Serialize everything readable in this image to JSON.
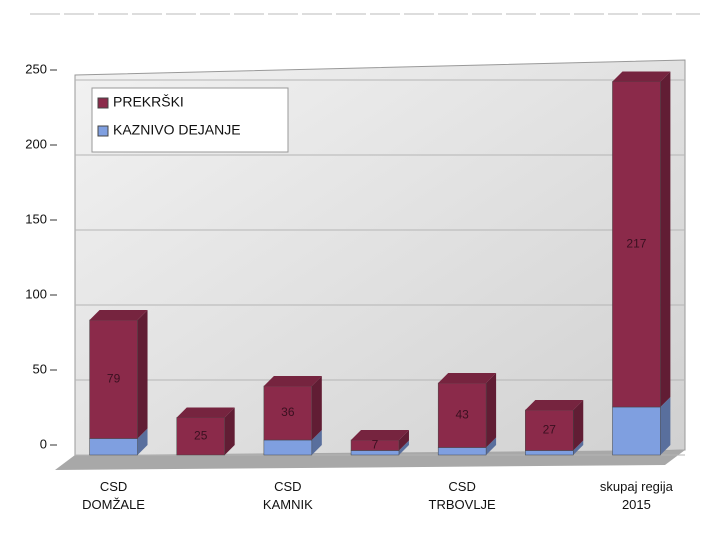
{
  "chart_data": {
    "type": "stacked_bar",
    "categories": [
      "CSD DOMŽALE",
      null,
      "CSD KAMNIK",
      null,
      "CSD TRBOVLJE",
      null,
      "skupaj regija 2015"
    ],
    "series": [
      {
        "name": "KAZNIVO DEJANJE",
        "color": "#7f9fe0",
        "values": [
          11,
          0,
          10,
          3,
          5,
          3,
          32
        ]
      },
      {
        "name": "PREKRŠKI",
        "color": "#8b2a4a",
        "values": [
          79,
          25,
          36,
          7,
          43,
          27,
          217
        ]
      }
    ],
    "legend_order": [
      1,
      0
    ],
    "ylim": [
      0,
      250
    ],
    "yticks": [
      0,
      50,
      100,
      150,
      200,
      250
    ],
    "grid": true,
    "legend": "upper left"
  }
}
